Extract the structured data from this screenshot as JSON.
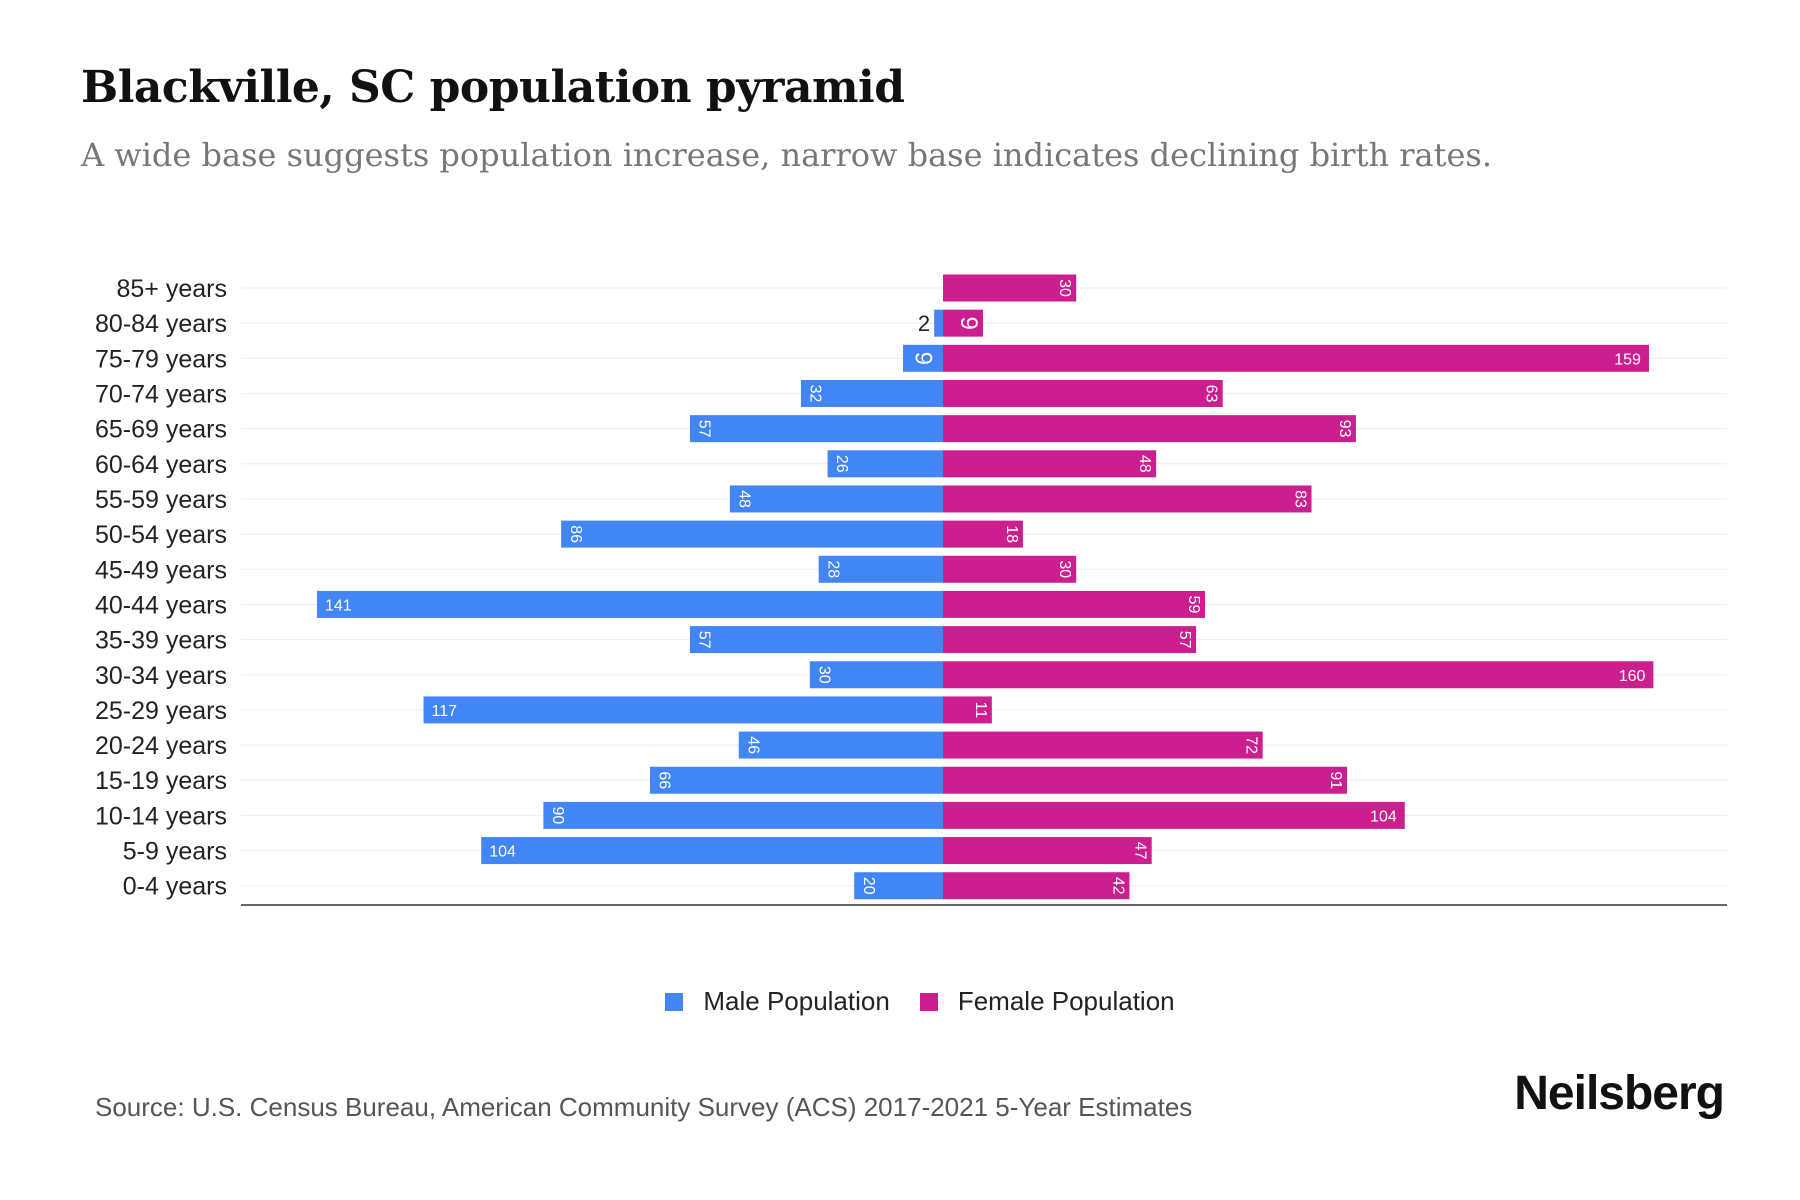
{
  "title": "Blackville, SC population pyramid",
  "subtitle": "A wide base suggests population increase, narrow base indicates declining birth rates.",
  "source": "Source: U.S. Census Bureau, American Community Survey (ACS) 2017-2021 5-Year Estimates",
  "logo": "Neilsberg",
  "colors": {
    "male": "#4285f4",
    "female": "#cc1f8f"
  },
  "chart_data": {
    "type": "bar",
    "orientation": "horizontal-pyramid",
    "title": "Blackville, SC population pyramid",
    "categories": [
      "85+ years",
      "80-84 years",
      "75-79 years",
      "70-74 years",
      "65-69 years",
      "60-64 years",
      "55-59 years",
      "50-54 years",
      "45-49 years",
      "40-44 years",
      "35-39 years",
      "30-34 years",
      "25-29 years",
      "20-24 years",
      "15-19 years",
      "10-14 years",
      "5-9 years",
      "0-4 years"
    ],
    "series": [
      {
        "name": "Male Population",
        "values": [
          0,
          2,
          9,
          32,
          57,
          26,
          48,
          86,
          28,
          141,
          57,
          30,
          117,
          46,
          66,
          90,
          104,
          20
        ]
      },
      {
        "name": "Female Population",
        "values": [
          30,
          9,
          159,
          63,
          93,
          48,
          83,
          18,
          30,
          59,
          57,
          160,
          11,
          72,
          91,
          104,
          47,
          42
        ]
      }
    ],
    "legend_position": "bottom-center",
    "grid": true
  }
}
